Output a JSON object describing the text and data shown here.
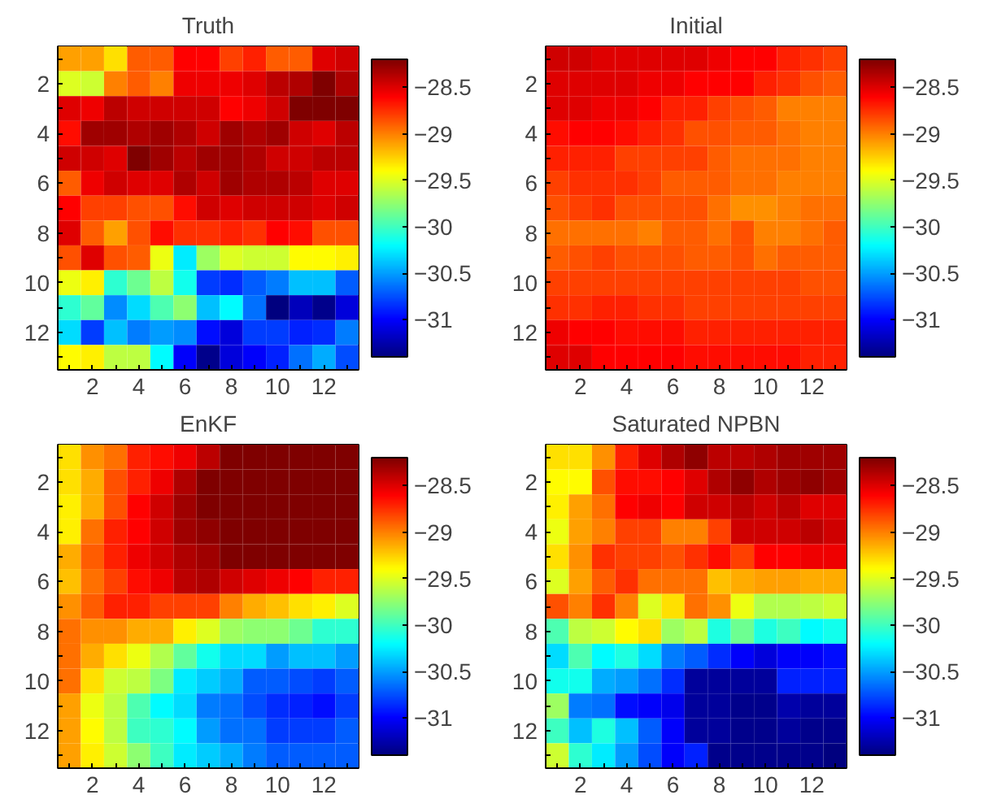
{
  "chart_data": [
    {
      "type": "heatmap",
      "title": "Truth",
      "categories": [
        null,
        "2",
        null,
        "4",
        null,
        "6",
        null,
        "8",
        null,
        "10",
        null,
        "12",
        null
      ],
      "y_categories": [
        null,
        "2",
        null,
        "4",
        null,
        "6",
        null,
        "8",
        null,
        "10",
        null,
        "12",
        null
      ],
      "clim": [
        -31.4,
        -28.2
      ],
      "cticks": [
        -31,
        -30.5,
        -30,
        -29.5,
        -29,
        -28.5
      ],
      "cells": [
        [
          -29.1,
          -29.1,
          -29.3,
          -28.9,
          -28.9,
          -28.6,
          -28.6,
          -28.8,
          -28.7,
          -28.9,
          -28.9,
          -28.5,
          -28.45
        ],
        [
          -29.5,
          -29.55,
          -29.0,
          -28.9,
          -29.0,
          -28.55,
          -28.55,
          -28.55,
          -28.5,
          -28.4,
          -28.35,
          -28.2,
          -28.35
        ],
        [
          -28.5,
          -28.55,
          -28.4,
          -28.45,
          -28.45,
          -28.45,
          -28.45,
          -28.6,
          -28.55,
          -28.45,
          -28.2,
          -28.2,
          -28.2
        ],
        [
          -28.65,
          -28.3,
          -28.3,
          -28.35,
          -28.3,
          -28.35,
          -28.45,
          -28.3,
          -28.35,
          -28.3,
          -28.45,
          -28.5,
          -28.4
        ],
        [
          -28.45,
          -28.45,
          -28.5,
          -28.2,
          -28.3,
          -28.4,
          -28.3,
          -28.3,
          -28.35,
          -28.45,
          -28.45,
          -28.4,
          -28.4
        ],
        [
          -28.9,
          -28.55,
          -28.45,
          -28.5,
          -28.5,
          -28.35,
          -28.45,
          -28.3,
          -28.35,
          -28.35,
          -28.4,
          -28.5,
          -28.5
        ],
        [
          -28.6,
          -28.8,
          -28.8,
          -28.85,
          -28.85,
          -28.65,
          -28.45,
          -28.5,
          -28.45,
          -28.45,
          -28.45,
          -28.5,
          -28.45
        ],
        [
          -28.5,
          -28.9,
          -29.1,
          -28.85,
          -28.65,
          -28.75,
          -28.75,
          -28.7,
          -28.75,
          -28.6,
          -28.65,
          -28.85,
          -28.85
        ],
        [
          -28.85,
          -28.5,
          -28.85,
          -28.9,
          -29.45,
          -30.25,
          -29.7,
          -29.5,
          -29.55,
          -29.55,
          -29.4,
          -29.4,
          -29.35
        ],
        [
          -29.45,
          -29.35,
          -30.05,
          -29.85,
          -29.6,
          -30.15,
          -30.8,
          -30.85,
          -30.7,
          -30.6,
          -30.4,
          -30.4,
          -30.7
        ],
        [
          -30.05,
          -29.9,
          -30.55,
          -30.3,
          -29.95,
          -29.75,
          -30.4,
          -30.2,
          -30.65,
          -31.4,
          -31.2,
          -31.35,
          -31.1
        ],
        [
          -30.3,
          -30.8,
          -30.4,
          -30.6,
          -30.5,
          -30.55,
          -30.95,
          -31.1,
          -30.8,
          -30.8,
          -30.9,
          -30.85,
          -30.6
        ],
        [
          -29.4,
          -29.35,
          -29.6,
          -29.6,
          -30.2,
          -31.0,
          -31.35,
          -31.1,
          -31.0,
          -30.9,
          -30.65,
          -30.45,
          -30.75
        ]
      ]
    },
    {
      "type": "heatmap",
      "title": "Initial",
      "categories": [
        null,
        "2",
        null,
        "4",
        null,
        "6",
        null,
        "8",
        null,
        "10",
        null,
        "12",
        null
      ],
      "y_categories": [
        null,
        "2",
        null,
        "4",
        null,
        "6",
        null,
        "8",
        null,
        "10",
        null,
        "12",
        null
      ],
      "clim": [
        -31.4,
        -28.2
      ],
      "cticks": [
        -31,
        -30.5,
        -30,
        -29.5,
        -29,
        -28.5
      ],
      "cells": [
        [
          -28.45,
          -28.45,
          -28.5,
          -28.5,
          -28.5,
          -28.5,
          -28.5,
          -28.55,
          -28.6,
          -28.6,
          -28.7,
          -28.75,
          -28.8
        ],
        [
          -28.5,
          -28.5,
          -28.5,
          -28.5,
          -28.55,
          -28.55,
          -28.6,
          -28.6,
          -28.6,
          -28.7,
          -28.75,
          -28.85,
          -28.9
        ],
        [
          -28.5,
          -28.5,
          -28.55,
          -28.55,
          -28.6,
          -28.7,
          -28.7,
          -28.8,
          -28.85,
          -28.9,
          -29.0,
          -29.0,
          -29.0
        ],
        [
          -28.65,
          -28.6,
          -28.6,
          -28.65,
          -28.7,
          -28.75,
          -28.85,
          -28.85,
          -28.9,
          -28.9,
          -28.95,
          -29.0,
          -29.0
        ],
        [
          -28.7,
          -28.7,
          -28.7,
          -28.8,
          -28.8,
          -28.8,
          -28.8,
          -28.9,
          -28.95,
          -28.95,
          -28.95,
          -29.0,
          -29.0
        ],
        [
          -28.8,
          -28.75,
          -28.75,
          -28.75,
          -28.8,
          -28.9,
          -28.9,
          -28.9,
          -28.95,
          -28.95,
          -29.0,
          -29.0,
          -29.0
        ],
        [
          -28.85,
          -28.8,
          -28.75,
          -28.85,
          -28.85,
          -28.85,
          -28.85,
          -28.95,
          -29.05,
          -29.05,
          -29.0,
          -28.95,
          -28.95
        ],
        [
          -28.95,
          -28.95,
          -28.95,
          -28.95,
          -29.0,
          -28.9,
          -28.9,
          -28.95,
          -28.85,
          -29.0,
          -29.0,
          -28.95,
          -28.9
        ],
        [
          -28.9,
          -28.85,
          -28.8,
          -28.85,
          -28.85,
          -28.85,
          -28.9,
          -28.9,
          -28.85,
          -28.95,
          -28.9,
          -28.9,
          -28.9
        ],
        [
          -28.8,
          -28.8,
          -28.8,
          -28.8,
          -28.8,
          -28.8,
          -28.8,
          -28.8,
          -28.8,
          -28.8,
          -28.8,
          -28.85,
          -28.85
        ],
        [
          -28.75,
          -28.75,
          -28.7,
          -28.7,
          -28.75,
          -28.75,
          -28.8,
          -28.8,
          -28.8,
          -28.8,
          -28.8,
          -28.8,
          -28.8
        ],
        [
          -28.55,
          -28.6,
          -28.6,
          -28.65,
          -28.65,
          -28.65,
          -28.7,
          -28.7,
          -28.7,
          -28.7,
          -28.7,
          -28.7,
          -28.7
        ],
        [
          -28.5,
          -28.5,
          -28.6,
          -28.6,
          -28.6,
          -28.6,
          -28.65,
          -28.65,
          -28.65,
          -28.65,
          -28.65,
          -28.7,
          -28.7
        ]
      ]
    },
    {
      "type": "heatmap",
      "title": "EnKF",
      "categories": [
        null,
        "2",
        null,
        "4",
        null,
        "6",
        null,
        "8",
        null,
        "10",
        null,
        "12",
        null
      ],
      "y_categories": [
        null,
        "2",
        null,
        "4",
        null,
        "6",
        null,
        "8",
        null,
        "10",
        null,
        "12",
        null
      ],
      "clim": [
        -31.4,
        -28.2
      ],
      "cticks": [
        -31,
        -30.5,
        -30,
        -29.5,
        -29,
        -28.5
      ],
      "cells": [
        [
          -29.3,
          -29.05,
          -28.95,
          -28.7,
          -28.65,
          -28.55,
          -28.4,
          -28.2,
          -28.2,
          -28.2,
          -28.2,
          -28.2,
          -28.2
        ],
        [
          -29.3,
          -29.15,
          -28.85,
          -28.7,
          -28.55,
          -28.35,
          -28.2,
          -28.2,
          -28.2,
          -28.2,
          -28.2,
          -28.2,
          -28.2
        ],
        [
          -29.35,
          -29.15,
          -28.85,
          -28.6,
          -28.45,
          -28.3,
          -28.2,
          -28.2,
          -28.2,
          -28.2,
          -28.2,
          -28.2,
          -28.2
        ],
        [
          -29.35,
          -28.95,
          -28.7,
          -28.6,
          -28.45,
          -28.3,
          -28.25,
          -28.2,
          -28.2,
          -28.2,
          -28.2,
          -28.2,
          -28.2
        ],
        [
          -29.15,
          -28.9,
          -28.7,
          -28.55,
          -28.45,
          -28.35,
          -28.3,
          -28.2,
          -28.2,
          -28.2,
          -28.2,
          -28.2,
          -28.2
        ],
        [
          -29.2,
          -28.95,
          -28.8,
          -28.65,
          -28.55,
          -28.4,
          -28.35,
          -28.45,
          -28.5,
          -28.55,
          -28.6,
          -28.7,
          -28.7
        ],
        [
          -29.05,
          -28.9,
          -28.7,
          -28.7,
          -28.8,
          -28.8,
          -28.8,
          -29.0,
          -29.15,
          -29.2,
          -29.3,
          -29.35,
          -29.5
        ],
        [
          -28.95,
          -29.05,
          -29.05,
          -29.15,
          -29.15,
          -29.35,
          -29.5,
          -29.7,
          -29.75,
          -29.75,
          -29.85,
          -30.05,
          -30.05
        ],
        [
          -28.95,
          -29.15,
          -29.3,
          -29.45,
          -29.65,
          -29.9,
          -30.15,
          -30.3,
          -30.3,
          -30.5,
          -30.4,
          -30.4,
          -30.5
        ],
        [
          -28.95,
          -29.3,
          -29.55,
          -29.6,
          -29.8,
          -30.25,
          -30.35,
          -30.45,
          -30.7,
          -30.7,
          -30.75,
          -30.8,
          -30.7
        ],
        [
          -29.1,
          -29.45,
          -29.6,
          -29.95,
          -30.2,
          -30.3,
          -30.6,
          -30.65,
          -30.75,
          -30.85,
          -30.9,
          -30.95,
          -30.8
        ],
        [
          -29.1,
          -29.4,
          -29.6,
          -30.0,
          -30.05,
          -30.2,
          -30.5,
          -30.65,
          -30.65,
          -30.8,
          -30.8,
          -30.8,
          -30.7
        ],
        [
          -29.1,
          -29.35,
          -29.55,
          -29.75,
          -30.0,
          -30.25,
          -30.35,
          -30.45,
          -30.6,
          -30.7,
          -30.7,
          -30.7,
          -30.7
        ]
      ]
    },
    {
      "type": "heatmap",
      "title": "Saturated NPBN",
      "categories": [
        null,
        "2",
        null,
        "4",
        null,
        "6",
        null,
        "8",
        null,
        "10",
        null,
        "12",
        null
      ],
      "y_categories": [
        null,
        "2",
        null,
        "4",
        null,
        "6",
        null,
        "8",
        null,
        "10",
        null,
        "12",
        null
      ],
      "clim": [
        -31.4,
        -28.2
      ],
      "cticks": [
        -31,
        -30.5,
        -30,
        -29.5,
        -29,
        -28.5
      ],
      "cells": [
        [
          -29.3,
          -29.3,
          -29.05,
          -28.7,
          -28.5,
          -28.35,
          -28.25,
          -28.4,
          -28.4,
          -28.35,
          -28.3,
          -28.3,
          -28.3
        ],
        [
          -29.4,
          -29.4,
          -28.85,
          -28.65,
          -28.65,
          -28.6,
          -28.5,
          -28.35,
          -28.25,
          -28.35,
          -28.3,
          -28.25,
          -28.3
        ],
        [
          -29.35,
          -29.1,
          -28.95,
          -28.6,
          -28.55,
          -28.6,
          -28.45,
          -28.45,
          -28.4,
          -28.45,
          -28.4,
          -28.5,
          -28.5
        ],
        [
          -29.45,
          -29.1,
          -29.0,
          -28.8,
          -28.8,
          -29.0,
          -29.0,
          -28.8,
          -28.45,
          -28.45,
          -28.45,
          -28.4,
          -28.45
        ],
        [
          -29.3,
          -29.05,
          -28.75,
          -28.8,
          -28.8,
          -28.85,
          -28.75,
          -28.65,
          -28.8,
          -28.6,
          -28.6,
          -28.55,
          -28.55
        ],
        [
          -29.5,
          -29.1,
          -28.9,
          -28.75,
          -28.95,
          -28.95,
          -28.95,
          -29.2,
          -29.15,
          -29.1,
          -29.1,
          -29.15,
          -29.15
        ],
        [
          -28.85,
          -29.0,
          -28.75,
          -29.0,
          -29.5,
          -29.3,
          -28.95,
          -29.05,
          -29.45,
          -29.65,
          -29.65,
          -29.6,
          -29.55
        ],
        [
          -29.95,
          -29.6,
          -29.55,
          -29.4,
          -29.3,
          -29.7,
          -29.6,
          -30.1,
          -29.85,
          -30.1,
          -30.0,
          -30.2,
          -30.15
        ],
        [
          -30.3,
          -29.95,
          -30.2,
          -30.1,
          -30.3,
          -30.6,
          -30.7,
          -30.85,
          -31.0,
          -31.1,
          -31.0,
          -31.0,
          -30.95
        ],
        [
          -30.15,
          -30.15,
          -30.45,
          -30.5,
          -30.65,
          -30.85,
          -31.3,
          -31.3,
          -31.3,
          -31.3,
          -30.9,
          -30.9,
          -30.9
        ],
        [
          -29.7,
          -30.6,
          -30.65,
          -30.95,
          -31.0,
          -31.05,
          -31.3,
          -31.3,
          -31.35,
          -31.35,
          -31.25,
          -31.3,
          -31.3
        ],
        [
          -30.0,
          -30.4,
          -30.1,
          -30.4,
          -30.7,
          -31.0,
          -31.3,
          -31.3,
          -31.35,
          -31.35,
          -31.3,
          -31.35,
          -31.35
        ],
        [
          -29.55,
          -30.05,
          -30.25,
          -30.5,
          -30.75,
          -31.0,
          -30.9,
          -31.35,
          -31.35,
          -31.35,
          -31.35,
          -31.35,
          -31.4
        ]
      ]
    }
  ]
}
